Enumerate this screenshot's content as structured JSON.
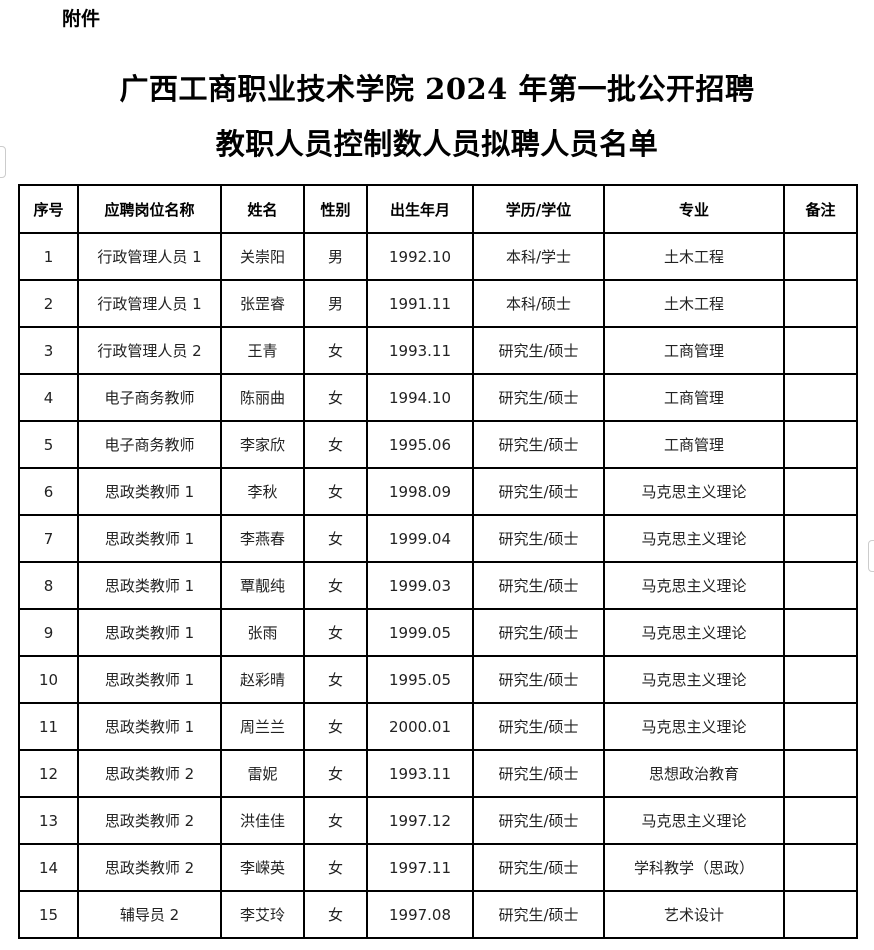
{
  "attachment_label": "附件",
  "title_line1": "广西工商职业技术学院 2024 年第一批公开招聘",
  "title_line2": "教职人员控制数人员拟聘人员名单",
  "table": {
    "headers": [
      "序号",
      "应聘岗位名称",
      "姓名",
      "性别",
      "出生年月",
      "学历/学位",
      "专业",
      "备注"
    ],
    "rows": [
      [
        "1",
        "行政管理人员 1",
        "关崇阳",
        "男",
        "1992.10",
        "本科/学士",
        "土木工程",
        ""
      ],
      [
        "2",
        "行政管理人员 1",
        "张罡睿",
        "男",
        "1991.11",
        "本科/硕士",
        "土木工程",
        ""
      ],
      [
        "3",
        "行政管理人员 2",
        "王青",
        "女",
        "1993.11",
        "研究生/硕士",
        "工商管理",
        ""
      ],
      [
        "4",
        "电子商务教师",
        "陈丽曲",
        "女",
        "1994.10",
        "研究生/硕士",
        "工商管理",
        ""
      ],
      [
        "5",
        "电子商务教师",
        "李家欣",
        "女",
        "1995.06",
        "研究生/硕士",
        "工商管理",
        ""
      ],
      [
        "6",
        "思政类教师 1",
        "李秋",
        "女",
        "1998.09",
        "研究生/硕士",
        "马克思主义理论",
        ""
      ],
      [
        "7",
        "思政类教师 1",
        "李燕春",
        "女",
        "1999.04",
        "研究生/硕士",
        "马克思主义理论",
        ""
      ],
      [
        "8",
        "思政类教师 1",
        "覃靓纯",
        "女",
        "1999.03",
        "研究生/硕士",
        "马克思主义理论",
        ""
      ],
      [
        "9",
        "思政类教师 1",
        "张雨",
        "女",
        "1999.05",
        "研究生/硕士",
        "马克思主义理论",
        ""
      ],
      [
        "10",
        "思政类教师 1",
        "赵彩晴",
        "女",
        "1995.05",
        "研究生/硕士",
        "马克思主义理论",
        ""
      ],
      [
        "11",
        "思政类教师 1",
        "周兰兰",
        "女",
        "2000.01",
        "研究生/硕士",
        "马克思主义理论",
        ""
      ],
      [
        "12",
        "思政类教师 2",
        "雷妮",
        "女",
        "1993.11",
        "研究生/硕士",
        "思想政治教育",
        ""
      ],
      [
        "13",
        "思政类教师 2",
        "洪佳佳",
        "女",
        "1997.12",
        "研究生/硕士",
        "马克思主义理论",
        ""
      ],
      [
        "14",
        "思政类教师 2",
        "李嵘英",
        "女",
        "1997.11",
        "研究生/硕士",
        "学科教学（思政）",
        ""
      ],
      [
        "15",
        "辅导员 2",
        "李艾玲",
        "女",
        "1997.08",
        "研究生/硕士",
        "艺术设计",
        ""
      ]
    ]
  }
}
